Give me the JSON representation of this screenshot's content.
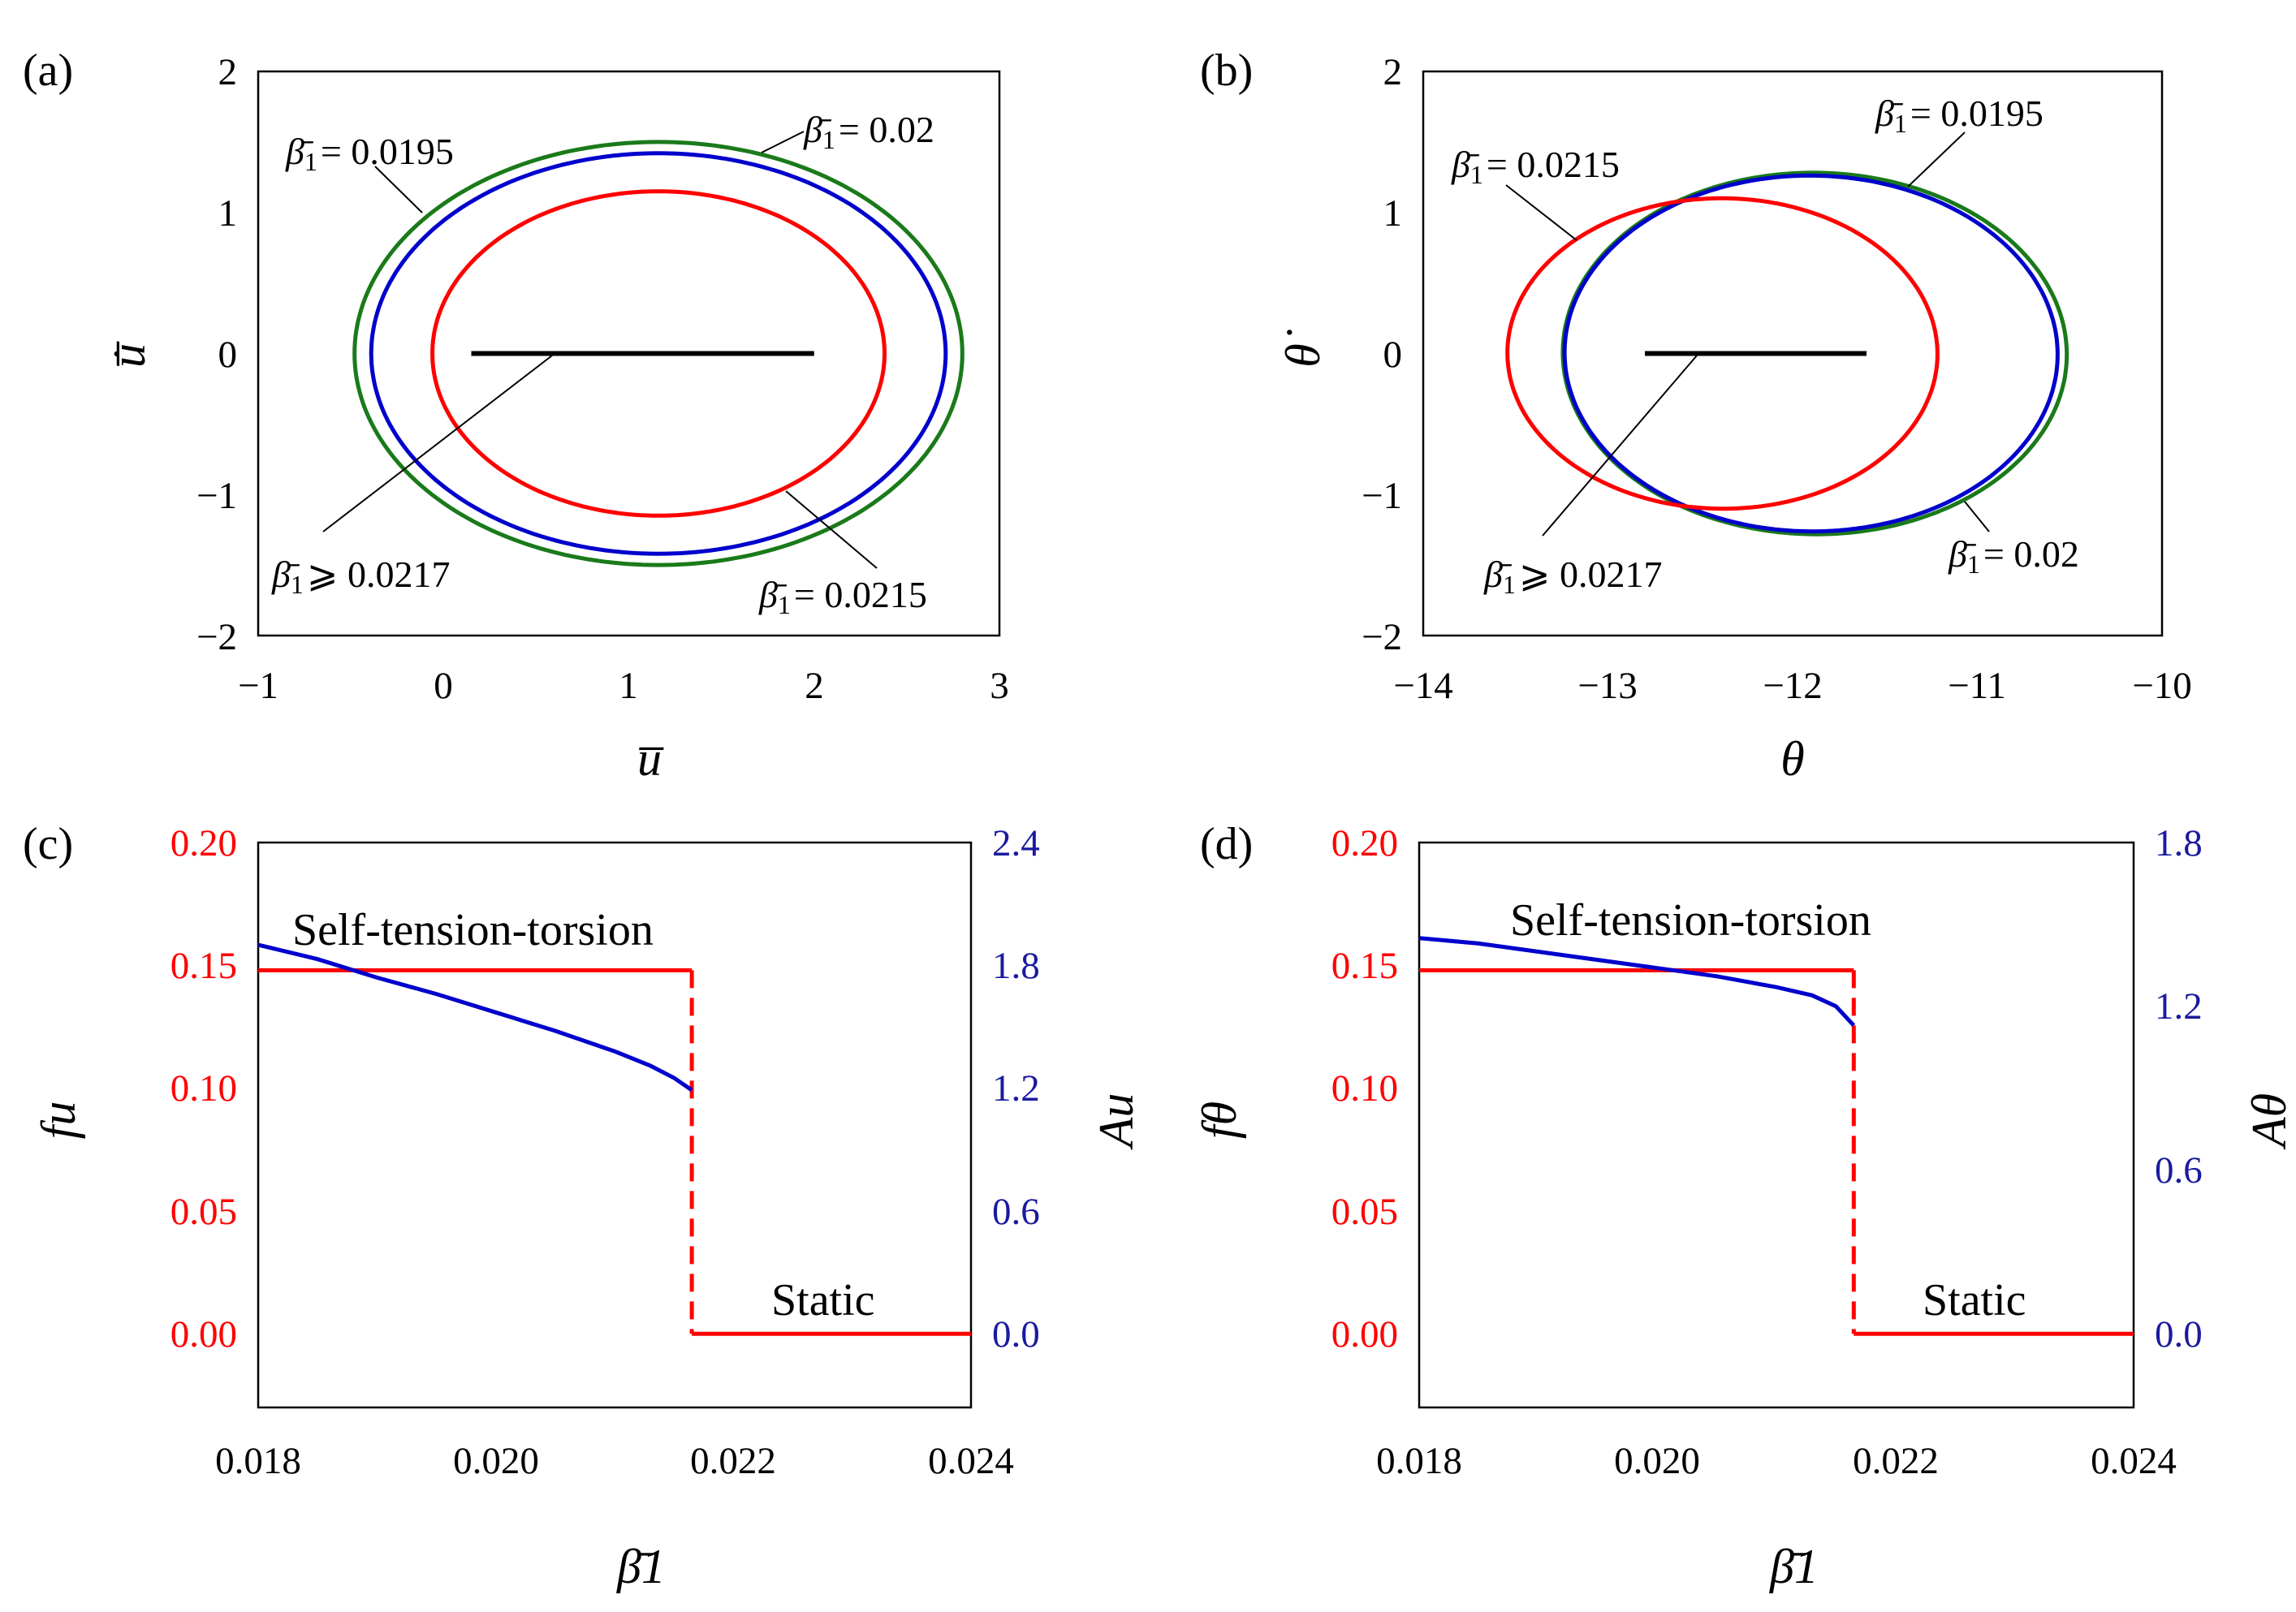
{
  "colors": {
    "green": "#1a7a1a",
    "blue": "#0000cc",
    "red": "#ff0000",
    "black": "#000000",
    "axis_left_c": "#ff0000",
    "axis_right_c": "#1a1aa0"
  },
  "chart_data": [
    {
      "id": "a",
      "panel_label": "(a)",
      "type": "line",
      "title": "",
      "xlabel": "u̅",
      "ylabel": "u̅̇",
      "xlim": [
        -1,
        3
      ],
      "ylim": [
        -2,
        2
      ],
      "xticks": [
        "−1",
        "0",
        "1",
        "2",
        "3"
      ],
      "yticks": [
        "2",
        "1",
        "0",
        "−1",
        "−2"
      ],
      "series": [
        {
          "name": "β̄1 = 0.0195",
          "color_key": "green",
          "kind": "ellipse",
          "cx": 1.16,
          "cy": 0.0,
          "rx": 1.64,
          "ry": 1.5
        },
        {
          "name": "β̄1 = 0.02",
          "color_key": "blue",
          "kind": "ellipse",
          "cx": 1.16,
          "cy": 0.0,
          "rx": 1.55,
          "ry": 1.42
        },
        {
          "name": "β̄1 = 0.0215",
          "color_key": "red",
          "kind": "ellipse",
          "cx": 1.16,
          "cy": 0.0,
          "rx": 1.22,
          "ry": 1.15
        },
        {
          "name": "β̄1 ⩾ 0.0217",
          "color_key": "black",
          "kind": "segment",
          "x": [
            0.15,
            2.0
          ],
          "y": [
            0,
            0
          ]
        }
      ],
      "annotations": [
        {
          "prefix": "β̄",
          "sub": "1",
          "value": "= 0.0195"
        },
        {
          "prefix": "β̄",
          "sub": "1",
          "value": "= 0.02"
        },
        {
          "prefix": "β̄",
          "sub": "1",
          "value": "⩾ 0.0217"
        },
        {
          "prefix": "β̄",
          "sub": "1",
          "value": "= 0.0215"
        }
      ]
    },
    {
      "id": "b",
      "panel_label": "(b)",
      "type": "line",
      "title": "",
      "xlabel": "θ",
      "ylabel": "θ̇",
      "xlim": [
        -14,
        -10
      ],
      "ylim": [
        -2,
        2
      ],
      "xticks": [
        "−14",
        "−13",
        "−12",
        "−11",
        "−10"
      ],
      "yticks": [
        "2",
        "1",
        "0",
        "−1",
        "−2"
      ],
      "series": [
        {
          "name": "β̄1 = 0.0195",
          "color_key": "green",
          "kind": "ellipse",
          "cx": -11.88,
          "cy": 0.0,
          "rx": 1.38,
          "ry": 1.28,
          "tilt_deg": -9
        },
        {
          "name": "β̄1 = 0.02",
          "color_key": "blue",
          "kind": "ellipse",
          "cx": -11.9,
          "cy": 0.0,
          "rx": 1.35,
          "ry": 1.26,
          "tilt_deg": -9
        },
        {
          "name": "β̄1 = 0.0215",
          "color_key": "red",
          "kind": "ellipse",
          "cx": -12.38,
          "cy": 0.0,
          "rx": 1.17,
          "ry": 1.1,
          "tilt_deg": -6
        },
        {
          "name": "β̄1 ⩾ 0.0217",
          "color_key": "black",
          "kind": "segment",
          "x": [
            -12.8,
            -11.6
          ],
          "y": [
            0,
            0
          ]
        }
      ],
      "annotations": [
        {
          "prefix": "β̄",
          "sub": "1",
          "value": "= 0.0215"
        },
        {
          "prefix": "β̄",
          "sub": "1",
          "value": "= 0.0195"
        },
        {
          "prefix": "β̄",
          "sub": "1",
          "value": "⩾ 0.0217"
        },
        {
          "prefix": "β̄",
          "sub": "1",
          "value": "= 0.02"
        }
      ]
    },
    {
      "id": "c",
      "panel_label": "(c)",
      "type": "line",
      "title": "",
      "xlabel": "β̄1",
      "ylabel_left": "fu",
      "ylabel_right": "Au",
      "xlim": [
        0.018,
        0.024
      ],
      "ylim_left": [
        -0.03,
        0.2
      ],
      "ylim_right": [
        -0.36,
        2.4
      ],
      "xticks": [
        "0.018",
        "0.020",
        "0.022",
        "0.024"
      ],
      "yticks_left": [
        "0.20",
        "0.15",
        "0.10",
        "0.05",
        "0.00"
      ],
      "yticks_right": [
        "2.4",
        "1.8",
        "1.2",
        "0.6",
        "0.0"
      ],
      "series": [
        {
          "name": "frequency fu",
          "axis": "left",
          "color_key": "red",
          "x": [
            0.018,
            0.02165
          ],
          "y": [
            0.148,
            0.148
          ]
        },
        {
          "name": "frequency fu (static)",
          "axis": "left",
          "color_key": "red",
          "x": [
            0.02165,
            0.024
          ],
          "y": [
            0,
            0
          ]
        },
        {
          "name": "jump",
          "axis": "left",
          "color_key": "red",
          "dashed": true,
          "x": [
            0.02165,
            0.02165
          ],
          "y": [
            0.148,
            0
          ]
        },
        {
          "name": "amplitude Au",
          "axis": "right",
          "color_key": "blue",
          "x": [
            0.018,
            0.0185,
            0.019,
            0.0195,
            0.02,
            0.0205,
            0.021,
            0.0213,
            0.0215,
            0.02165
          ],
          "y": [
            1.9,
            1.83,
            1.74,
            1.66,
            1.57,
            1.48,
            1.38,
            1.31,
            1.25,
            1.19
          ]
        }
      ],
      "text_annotations": [
        "Self-tension-torsion",
        "Static"
      ]
    },
    {
      "id": "d",
      "panel_label": "(d)",
      "type": "line",
      "title": "",
      "xlabel": "β̄1",
      "ylabel_left": "fθ",
      "ylabel_right": "Aθ",
      "xlim": [
        0.018,
        0.024
      ],
      "ylim_left": [
        -0.03,
        0.2
      ],
      "ylim_right": [
        -0.27,
        1.8
      ],
      "xticks": [
        "0.018",
        "0.020",
        "0.022",
        "0.024"
      ],
      "yticks_left": [
        "0.20",
        "0.15",
        "0.10",
        "0.05",
        "0.00"
      ],
      "yticks_right": [
        "1.8",
        "1.2",
        "0.6",
        "0.0"
      ],
      "series": [
        {
          "name": "frequency fθ",
          "axis": "left",
          "color_key": "red",
          "x": [
            0.018,
            0.02165
          ],
          "y": [
            0.148,
            0.148
          ]
        },
        {
          "name": "frequency fθ (static)",
          "axis": "left",
          "color_key": "red",
          "x": [
            0.02165,
            0.024
          ],
          "y": [
            0,
            0
          ]
        },
        {
          "name": "jump",
          "axis": "left",
          "color_key": "red",
          "dashed": true,
          "x": [
            0.02165,
            0.02165
          ],
          "y": [
            0.148,
            0
          ]
        },
        {
          "name": "amplitude Aθ",
          "axis": "right",
          "color_key": "blue",
          "x": [
            0.018,
            0.0185,
            0.019,
            0.0195,
            0.02,
            0.0205,
            0.021,
            0.0213,
            0.0215,
            0.02165
          ],
          "y": [
            1.45,
            1.43,
            1.4,
            1.37,
            1.34,
            1.31,
            1.27,
            1.24,
            1.2,
            1.13
          ]
        }
      ],
      "text_annotations": [
        "Self-tension-torsion",
        "Static"
      ]
    }
  ]
}
